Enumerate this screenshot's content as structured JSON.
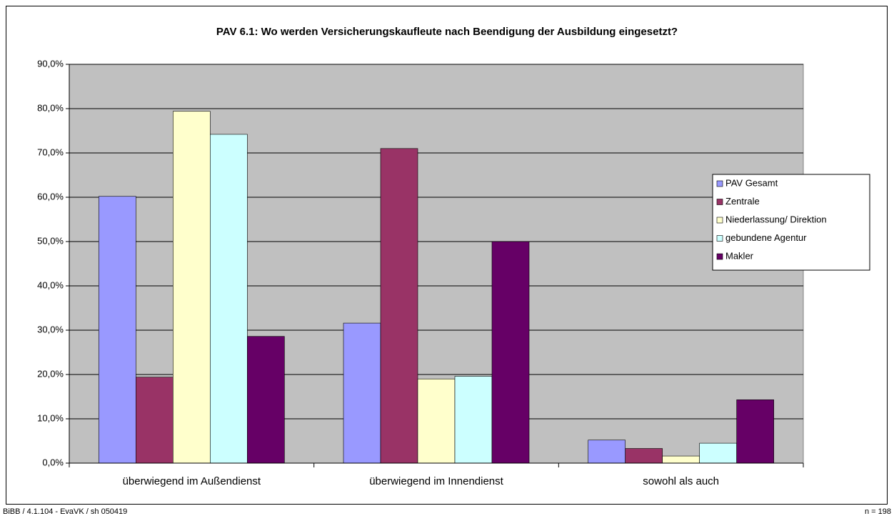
{
  "chart_data": {
    "type": "bar",
    "title": "PAV 6.1: Wo werden Versicherungskaufleute nach Beendigung der Ausbildung eingesetzt?",
    "categories": [
      "überwiegend im Außendienst",
      "überwiegend im Innendienst",
      "sowohl als auch"
    ],
    "series": [
      {
        "name": "PAV Gesamt",
        "color": "#9999ff",
        "values": [
          60.2,
          31.6,
          5.2
        ]
      },
      {
        "name": "Zentrale",
        "color": "#993366",
        "values": [
          19.4,
          71.0,
          3.3
        ]
      },
      {
        "name": "Niederlassung/ Direktion",
        "color": "#ffffcc",
        "values": [
          79.4,
          19.0,
          1.6
        ]
      },
      {
        "name": "gebundene Agentur",
        "color": "#ccffff",
        "values": [
          74.2,
          19.6,
          4.5
        ]
      },
      {
        "name": "Makler",
        "color": "#660066",
        "values": [
          28.6,
          50.0,
          14.3
        ]
      }
    ],
    "ylim": [
      0,
      90
    ],
    "yticks": [
      {
        "value": 0,
        "label": "0,0%"
      },
      {
        "value": 10,
        "label": "10,0%"
      },
      {
        "value": 20,
        "label": "20,0%"
      },
      {
        "value": 30,
        "label": "30,0%"
      },
      {
        "value": 40,
        "label": "40,0%"
      },
      {
        "value": 50,
        "label": "50,0%"
      },
      {
        "value": 60,
        "label": "60,0%"
      },
      {
        "value": 70,
        "label": "70,0%"
      },
      {
        "value": 80,
        "label": "80,0%"
      },
      {
        "value": 90,
        "label": "90,0%"
      }
    ],
    "grid": true,
    "legend": "right",
    "footnote_left": "BiBB / 4.1.104 - EvaVK / sh 050419",
    "footnote_right": "n = 198"
  }
}
